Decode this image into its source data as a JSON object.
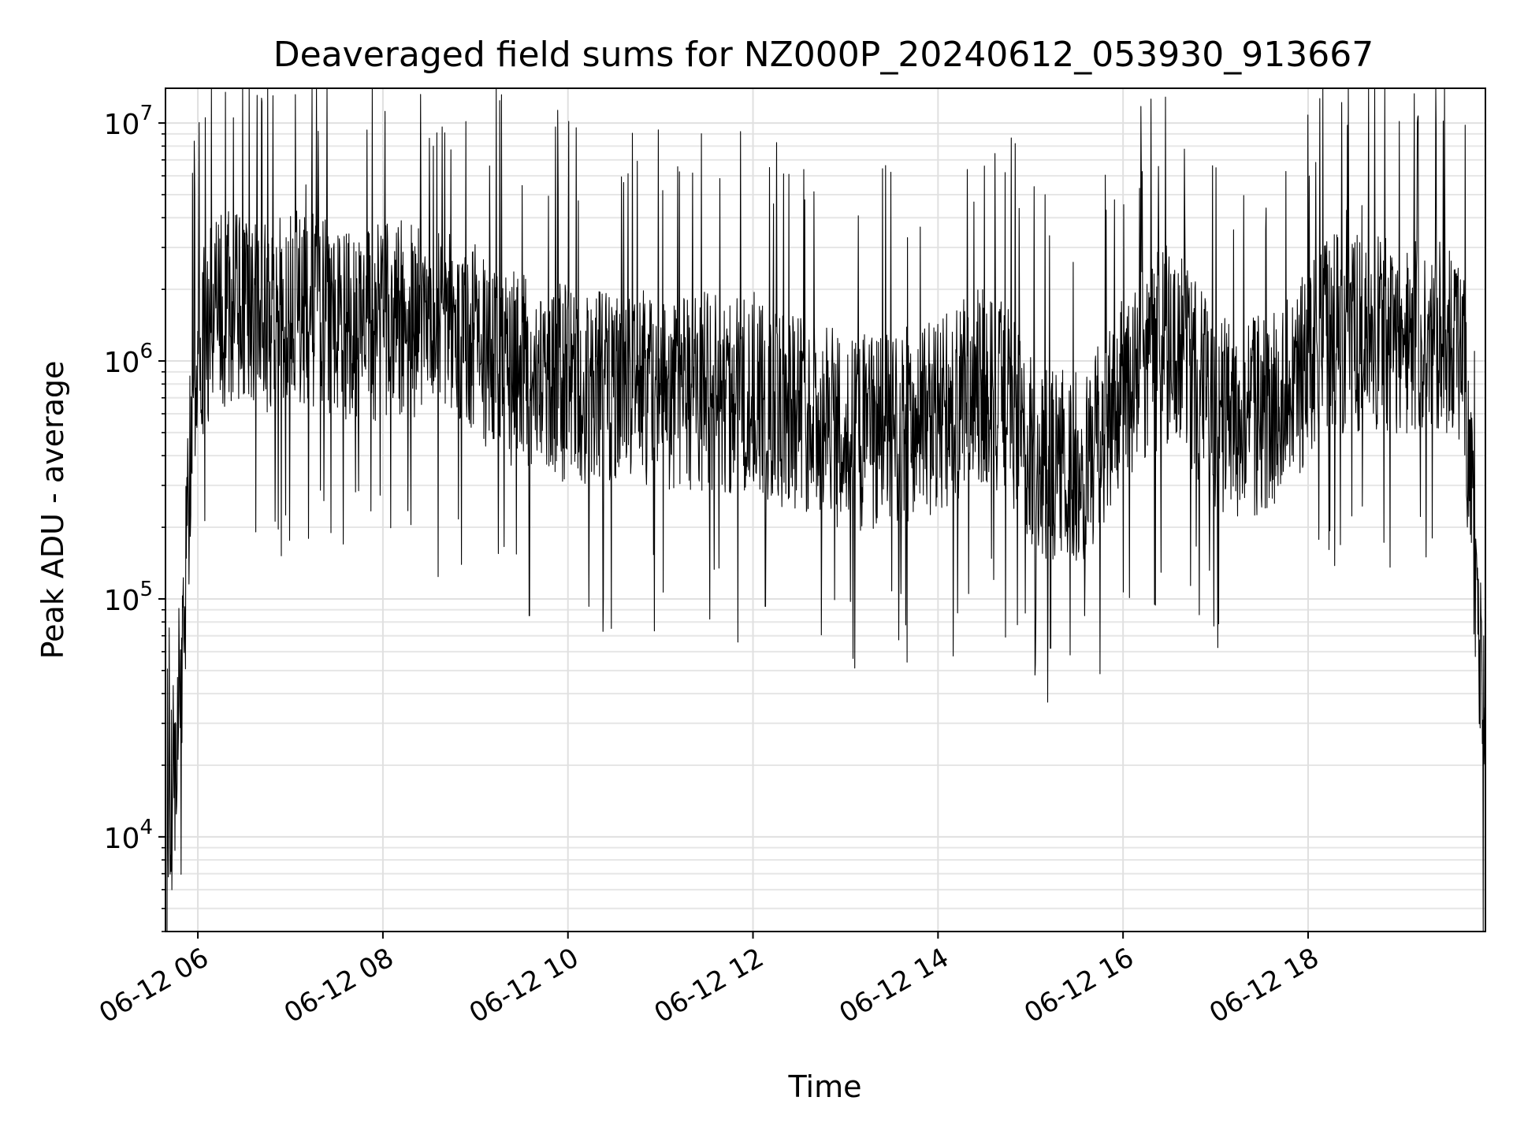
{
  "chart_data": {
    "type": "line",
    "title": "Deaveraged field sums for NZ000P_20240612_053930_913667",
    "xlabel": "Time",
    "ylabel": "Peak ADU - average",
    "x_scale": "time",
    "y_scale": "log",
    "xlim": [
      "06-12 05:39",
      "06-12 19:55"
    ],
    "ylim": [
      4000,
      14000000
    ],
    "grid": true,
    "line_color": "#000000",
    "x_ticks": [
      "06-12 06",
      "06-12 08",
      "06-12 10",
      "06-12 12",
      "06-12 14",
      "06-12 16",
      "06-12 18"
    ],
    "y_ticks": [
      {
        "base": "10",
        "exp": "4",
        "value": 10000
      },
      {
        "base": "10",
        "exp": "5",
        "value": 100000
      },
      {
        "base": "10",
        "exp": "6",
        "value": 1000000
      },
      {
        "base": "10",
        "exp": "7",
        "value": 10000000
      }
    ],
    "series": [
      {
        "x": [
          "06-12 05:40",
          "06-12 05:45",
          "06-12 05:50",
          "06-12 05:55",
          "06-12 06:00",
          "06-12 06:10",
          "06-12 06:20",
          "06-12 06:30",
          "06-12 06:45",
          "06-12 07:00",
          "06-12 07:15",
          "06-12 07:30",
          "06-12 07:45",
          "06-12 08:00",
          "06-12 08:15",
          "06-12 08:30",
          "06-12 08:45",
          "06-12 09:00",
          "06-12 09:15",
          "06-12 09:30",
          "06-12 09:45",
          "06-12 10:00",
          "06-12 10:15",
          "06-12 10:30",
          "06-12 10:45",
          "06-12 11:00",
          "06-12 11:15",
          "06-12 11:30",
          "06-12 11:45",
          "06-12 12:00",
          "06-12 12:15",
          "06-12 12:30",
          "06-12 12:45",
          "06-12 13:00",
          "06-12 13:15",
          "06-12 13:30",
          "06-12 13:45",
          "06-12 14:00",
          "06-12 14:15",
          "06-12 14:30",
          "06-12 14:45",
          "06-12 15:00",
          "06-12 15:15",
          "06-12 15:30",
          "06-12 15:45",
          "06-12 16:00",
          "06-12 16:15",
          "06-12 16:30",
          "06-12 16:45",
          "06-12 17:00",
          "06-12 17:15",
          "06-12 17:30",
          "06-12 17:45",
          "06-12 18:00",
          "06-12 18:15",
          "06-12 18:30",
          "06-12 18:45",
          "06-12 19:00",
          "06-12 19:15",
          "06-12 19:30",
          "06-12 19:40",
          "06-12 19:45",
          "06-12 19:50",
          "06-12 19:55"
        ],
        "values": [
          8000,
          20000,
          60000,
          400000,
          1100000,
          1500000,
          1700000,
          1600000,
          1500000,
          1700000,
          1600000,
          1500000,
          1400000,
          1500000,
          1500000,
          1400000,
          1300000,
          1200000,
          1000000,
          900000,
          850000,
          800000,
          800000,
          750000,
          800000,
          750000,
          700000,
          750000,
          700000,
          750000,
          650000,
          600000,
          550000,
          500000,
          500000,
          500000,
          550000,
          600000,
          700000,
          800000,
          700000,
          450000,
          350000,
          350000,
          450000,
          700000,
          1000000,
          1200000,
          900000,
          600000,
          550000,
          600000,
          700000,
          1000000,
          1300000,
          1300000,
          1300000,
          1200000,
          1300000,
          1200000,
          1100000,
          300000,
          100000,
          20000
        ],
        "spread_factor": 2.4,
        "spikes": [
          {
            "x": "06-12 05:58",
            "y": 5200000
          },
          {
            "x": "06-12 07:10",
            "y": 5500000
          },
          {
            "x": "06-12 08:35",
            "y": 9100000
          },
          {
            "x": "06-12 09:35",
            "y": 85000
          },
          {
            "x": "06-12 09:15",
            "y": 155000
          },
          {
            "x": "06-12 12:08",
            "y": 93000
          },
          {
            "x": "06-12 13:30",
            "y": 108000
          },
          {
            "x": "06-12 15:13",
            "y": 62000
          },
          {
            "x": "06-12 15:35",
            "y": 85000
          },
          {
            "x": "06-12 16:40",
            "y": 113000
          },
          {
            "x": "06-12 16:40",
            "y": 4100000
          },
          {
            "x": "06-12 18:25",
            "y": 4300000
          },
          {
            "x": "06-12 18:35",
            "y": 4500000
          },
          {
            "x": "06-12 19:42",
            "y": 9800000
          }
        ]
      }
    ]
  }
}
